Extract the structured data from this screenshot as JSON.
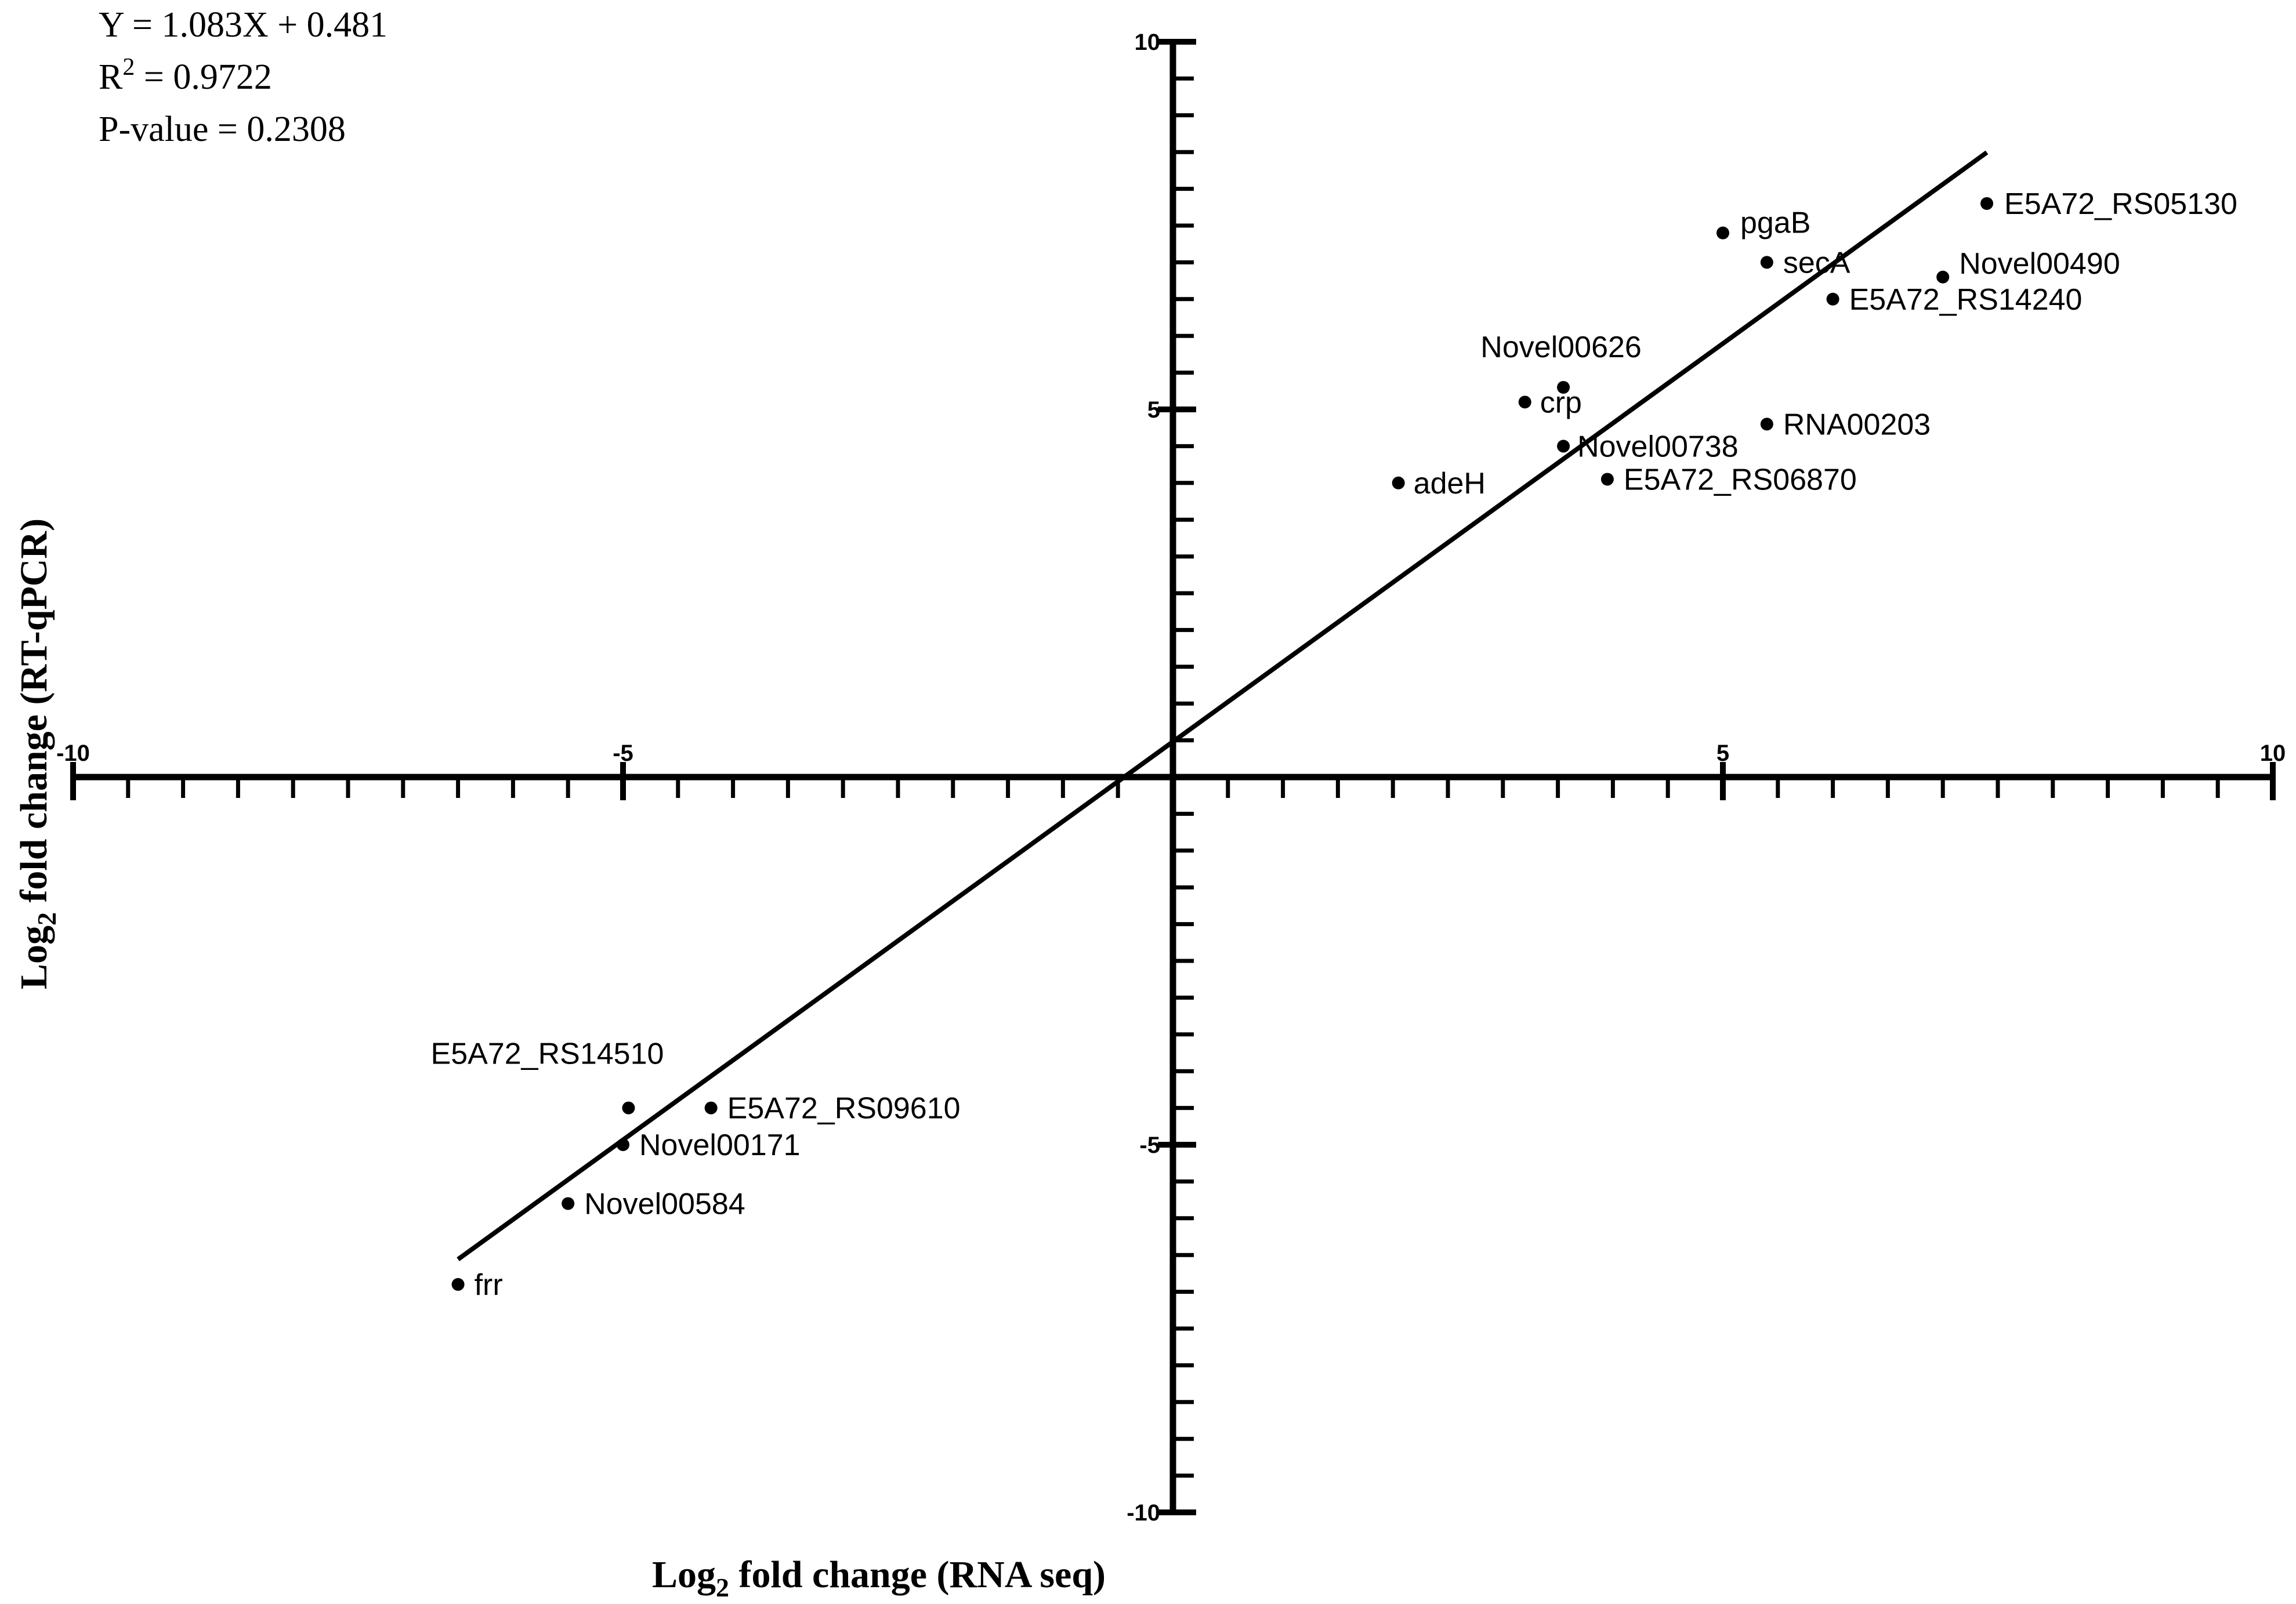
{
  "chart_data": {
    "type": "scatter",
    "title": "",
    "xlabel": {
      "prefix": "Log",
      "sub": "2",
      "suffix": " fold change (RNA seq)"
    },
    "ylabel": {
      "prefix": "Log",
      "sub": "2",
      "suffix": " fold change  (RT-qPCR)"
    },
    "xlim": [
      -10,
      10
    ],
    "ylim": [
      -10,
      10
    ],
    "x_ticks": [
      -10,
      -5,
      5,
      10
    ],
    "x_tick_labels": [
      "-10",
      "-5",
      "5",
      "10"
    ],
    "y_ticks": [
      10,
      5,
      -5,
      -10
    ],
    "y_tick_labels": [
      "10",
      "5",
      "-5",
      "-10"
    ],
    "minor_tick_step": 0.5,
    "grid": false,
    "legend": "none",
    "fit": {
      "slope": 1.083,
      "intercept": 0.481,
      "x_range": [
        -6.5,
        7.4
      ]
    },
    "annotations": {
      "equation": "Y = 1.083X + 0.481",
      "r2_prefix": "R",
      "r2_sup": "2",
      "r2_suffix": " = 0.9722",
      "pvalue": "P-value = 0.2308"
    },
    "points": [
      {
        "label": "E5A72_RS05130",
        "x": 7.4,
        "y": 7.8
      },
      {
        "label": "pgaB",
        "x": 5.0,
        "y": 7.4
      },
      {
        "label": "secA",
        "x": 5.4,
        "y": 7.0
      },
      {
        "label": "Novel00490",
        "x": 7.0,
        "y": 6.8
      },
      {
        "label": "E5A72_RS14240",
        "x": 6.0,
        "y": 6.5
      },
      {
        "label": "Novel00626",
        "x": 3.55,
        "y": 5.3
      },
      {
        "label": "crp",
        "x": 3.2,
        "y": 5.1
      },
      {
        "label": "RNA00203",
        "x": 5.4,
        "y": 4.8
      },
      {
        "label": "Novel00738",
        "x": 3.55,
        "y": 4.5
      },
      {
        "label": "E5A72_RS06870",
        "x": 3.95,
        "y": 4.05
      },
      {
        "label": "adeH",
        "x": 2.05,
        "y": 4.0
      },
      {
        "label": "E5A72_RS14510",
        "x": -4.95,
        "y": -4.5
      },
      {
        "label": "E5A72_RS09610",
        "x": -4.2,
        "y": -4.5
      },
      {
        "label": "Novel00171",
        "x": -5.0,
        "y": -5.0
      },
      {
        "label": "Novel00584",
        "x": -5.5,
        "y": -5.8
      },
      {
        "label": "frr",
        "x": -6.5,
        "y": -6.9
      }
    ]
  }
}
